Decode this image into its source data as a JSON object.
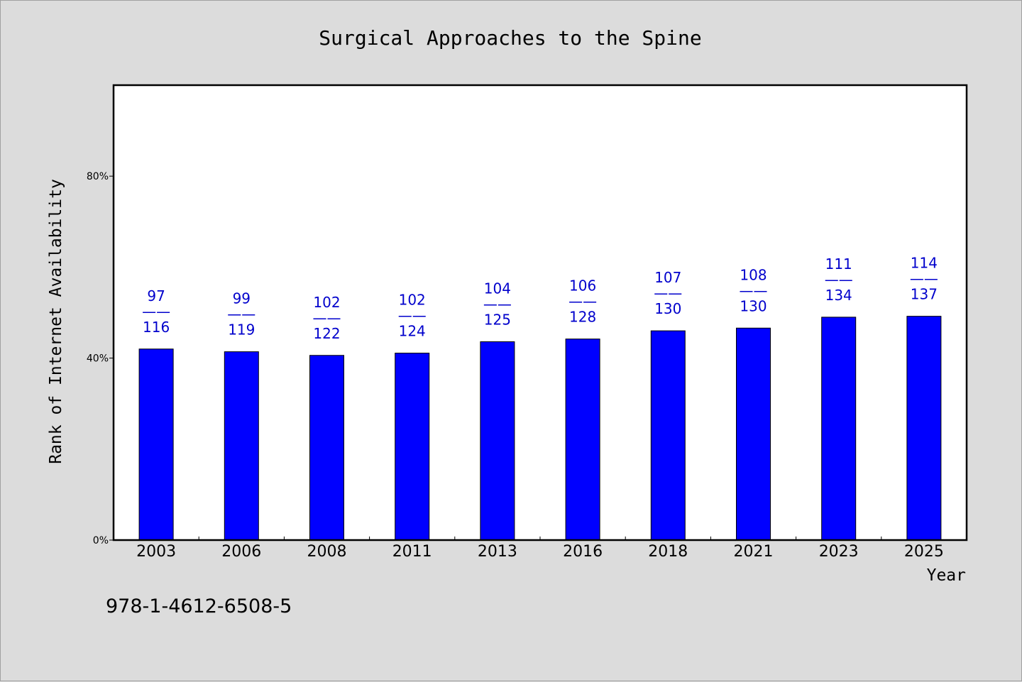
{
  "chart_data": {
    "type": "bar",
    "title": "Surgical Approaches to the Spine",
    "xlabel": "Year",
    "ylabel": "Rank of Internet Availability",
    "categories": [
      "2003",
      "2006",
      "2008",
      "2011",
      "2013",
      "2016",
      "2018",
      "2021",
      "2023",
      "2025"
    ],
    "values": [
      42.0,
      41.4,
      40.6,
      41.1,
      43.6,
      44.2,
      46.0,
      46.6,
      49.0,
      49.2
    ],
    "ylim": [
      0,
      100
    ],
    "yticks": [
      {
        "value": 0,
        "label": "0%"
      },
      {
        "value": 40,
        "label": "40%"
      },
      {
        "value": 80,
        "label": "80%"
      }
    ],
    "annotations": [
      {
        "top": "97",
        "sep": "——",
        "bottom": "116"
      },
      {
        "top": "99",
        "sep": "——",
        "bottom": "119"
      },
      {
        "top": "102",
        "sep": "——",
        "bottom": "122"
      },
      {
        "top": "102",
        "sep": "——",
        "bottom": "124"
      },
      {
        "top": "104",
        "sep": "——",
        "bottom": "125"
      },
      {
        "top": "106",
        "sep": "——",
        "bottom": "128"
      },
      {
        "top": "107",
        "sep": "——",
        "bottom": "130"
      },
      {
        "top": "108",
        "sep": "——",
        "bottom": "130"
      },
      {
        "top": "111",
        "sep": "——",
        "bottom": "134"
      },
      {
        "top": "114",
        "sep": "——",
        "bottom": "137"
      }
    ],
    "grid": false,
    "bar_color": "#0000ff",
    "label_color": "#0000cc",
    "background": "#dcdcdc",
    "plot_background": "#ffffff"
  },
  "footnote": "978-1-4612-6508-5"
}
